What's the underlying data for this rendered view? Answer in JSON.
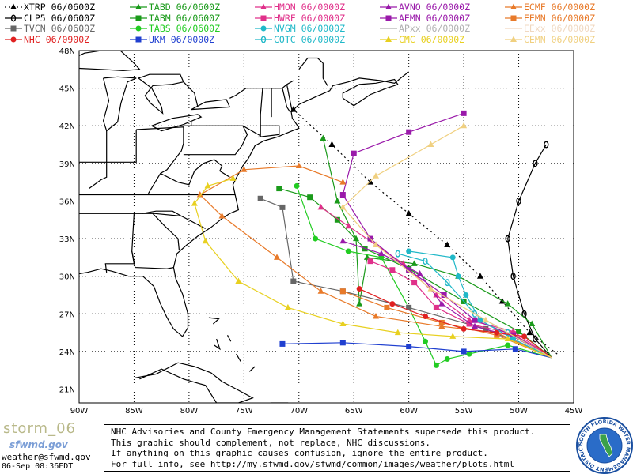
{
  "legend": [
    {
      "label": "XTRP 06/0600Z",
      "color": "#000000",
      "marker": "triangle",
      "line": "dotted"
    },
    {
      "label": "TABD 06/0600Z",
      "color": "#1a9a1a",
      "marker": "triangle",
      "line": "solid"
    },
    {
      "label": "HMON 06/0000Z",
      "color": "#e0308a",
      "marker": "triangle",
      "line": "solid"
    },
    {
      "label": "AVNO 06/0000Z",
      "color": "#9a1aaa",
      "marker": "triangle",
      "line": "solid"
    },
    {
      "label": "ECMF 06/0000Z",
      "color": "#e87a2a",
      "marker": "triangle",
      "line": "solid"
    },
    {
      "label": "CLP5 06/0600Z",
      "color": "#000000",
      "marker": "zero",
      "line": "solid"
    },
    {
      "label": "TABM 06/0600Z",
      "color": "#1a9a1a",
      "marker": "square",
      "line": "solid"
    },
    {
      "label": "HWRF 06/0000Z",
      "color": "#e0308a",
      "marker": "square",
      "line": "solid"
    },
    {
      "label": "AEMN 06/0000Z",
      "color": "#9a1aaa",
      "marker": "square",
      "line": "solid"
    },
    {
      "label": "EEMN 06/0000Z",
      "color": "#e87a2a",
      "marker": "square",
      "line": "solid"
    },
    {
      "label": "TVCN 06/0600Z",
      "color": "#666666",
      "marker": "square",
      "line": "solid"
    },
    {
      "label": "TABS 06/0600Z",
      "color": "#22cc22",
      "marker": "circle",
      "line": "solid"
    },
    {
      "label": "NVGM 06/0000Z",
      "color": "#20b8c8",
      "marker": "circle",
      "line": "solid"
    },
    {
      "label": "APxx  06/0000Z",
      "color": "#b0b0b0",
      "marker": "none",
      "line": "solid"
    },
    {
      "label": "EExx  06/0000Z",
      "color": "#f0d8c0",
      "marker": "none",
      "line": "solid"
    },
    {
      "label": "NHC 06/0900Z",
      "color": "#e02020",
      "marker": "circle",
      "line": "solid"
    },
    {
      "label": "UKM  06/0000Z",
      "color": "#2040d0",
      "marker": "square",
      "line": "solid"
    },
    {
      "label": "COTC 06/0000Z",
      "color": "#20b8c8",
      "marker": "zero",
      "line": "solid"
    },
    {
      "label": "CMC  06/0000Z",
      "color": "#e8d020",
      "marker": "triangle",
      "line": "solid"
    },
    {
      "label": "CEMN 06/0000Z",
      "color": "#f0d080",
      "marker": "triangle",
      "line": "solid"
    }
  ],
  "axes": {
    "lat_labels": [
      "48N",
      "45N",
      "42N",
      "39N",
      "36N",
      "33N",
      "30N",
      "27N",
      "24N",
      "21N"
    ],
    "lon_labels": [
      "90W",
      "85W",
      "80W",
      "75W",
      "70W",
      "65W",
      "60W",
      "55W",
      "50W",
      "45W"
    ]
  },
  "tracks": [
    {
      "name": "XTRP",
      "color": "#000000",
      "marker": "triangle",
      "dash": "2,4",
      "pts": [
        [
          -46.5,
          23.8
        ],
        [
          -49,
          25.5
        ],
        [
          -51.5,
          28
        ],
        [
          -53.5,
          30
        ],
        [
          -56.5,
          32.5
        ],
        [
          -60,
          35
        ],
        [
          -63.5,
          37.5
        ],
        [
          -67,
          40.5
        ],
        [
          -70.5,
          43.3
        ]
      ]
    },
    {
      "name": "CLP5",
      "color": "#000000",
      "marker": "zero",
      "dash": "",
      "pts": [
        [
          -47,
          23.5
        ],
        [
          -48.5,
          25
        ],
        [
          -49.5,
          27
        ],
        [
          -50.5,
          30
        ],
        [
          -51,
          33
        ],
        [
          -50,
          36
        ],
        [
          -48.5,
          39
        ],
        [
          -47.5,
          40.5
        ]
      ]
    },
    {
      "name": "TABD",
      "color": "#1a9a1a",
      "marker": "triangle",
      "dash": "",
      "pts": [
        [
          -47,
          23.5
        ],
        [
          -48.8,
          26.2
        ],
        [
          -51,
          27.8
        ],
        [
          -55.5,
          30
        ],
        [
          -59.5,
          31
        ],
        [
          -63.8,
          31.5
        ],
        [
          -64.5,
          27.8
        ],
        [
          -64.8,
          33
        ],
        [
          -66.5,
          36
        ],
        [
          -67.8,
          41
        ]
      ]
    },
    {
      "name": "TABM",
      "color": "#1a9a1a",
      "marker": "square",
      "dash": "",
      "pts": [
        [
          -47,
          23.5
        ],
        [
          -50,
          25.6
        ],
        [
          -55,
          28
        ],
        [
          -60,
          30.6
        ],
        [
          -64,
          32.2
        ],
        [
          -66.5,
          34.5
        ],
        [
          -69,
          36.3
        ],
        [
          -71.8,
          37
        ]
      ]
    },
    {
      "name": "TABS",
      "color": "#22cc22",
      "marker": "circle",
      "dash": "",
      "pts": [
        [
          -47,
          23.5
        ],
        [
          -51,
          24.5
        ],
        [
          -54.5,
          23.8
        ],
        [
          -56.5,
          23.4
        ],
        [
          -57.5,
          22.9
        ],
        [
          -58.5,
          24.8
        ],
        [
          -60,
          27.5
        ],
        [
          -62.5,
          31.5
        ],
        [
          -65.5,
          32
        ],
        [
          -68.5,
          33
        ],
        [
          -70.2,
          37.2
        ]
      ]
    },
    {
      "name": "TVCN",
      "color": "#666666",
      "marker": "square",
      "dash": "",
      "pts": [
        [
          -47,
          23.5
        ],
        [
          -53,
          25.8
        ],
        [
          -60,
          27.5
        ],
        [
          -66,
          28.8
        ],
        [
          -70.5,
          29.6
        ],
        [
          -71.5,
          35.5
        ],
        [
          -73.5,
          36.2
        ]
      ]
    },
    {
      "name": "HMON",
      "color": "#e0308a",
      "marker": "triangle",
      "dash": "",
      "pts": [
        [
          -47,
          23.5
        ],
        [
          -50.5,
          25.6
        ],
        [
          -54.5,
          26.5
        ],
        [
          -57.5,
          28.5
        ],
        [
          -60.5,
          31
        ],
        [
          -63,
          32.5
        ],
        [
          -65.5,
          34
        ],
        [
          -68,
          35.5
        ]
      ]
    },
    {
      "name": "HWRF",
      "color": "#e0308a",
      "marker": "square",
      "dash": "",
      "pts": [
        [
          -47,
          23.5
        ],
        [
          -50.5,
          25.4
        ],
        [
          -54.5,
          26.2
        ],
        [
          -57.5,
          27.5
        ],
        [
          -59.5,
          29.5
        ],
        [
          -61.5,
          30.5
        ],
        [
          -63.5,
          31.2
        ]
      ]
    },
    {
      "name": "AVNO",
      "color": "#9a1aaa",
      "marker": "triangle",
      "dash": "",
      "pts": [
        [
          -47,
          23.5
        ],
        [
          -50.5,
          25.2
        ],
        [
          -54,
          26
        ],
        [
          -57,
          27.8
        ],
        [
          -59,
          30.2
        ],
        [
          -62.5,
          31.8
        ],
        [
          -66,
          32.8
        ]
      ]
    },
    {
      "name": "AEMN",
      "color": "#9a1aaa",
      "marker": "square",
      "dash": "",
      "pts": [
        [
          -47,
          23.5
        ],
        [
          -50.5,
          25.3
        ],
        [
          -54,
          26.5
        ],
        [
          -56.8,
          28.5
        ],
        [
          -60,
          30.5
        ],
        [
          -63.5,
          33
        ],
        [
          -66,
          36.5
        ],
        [
          -65,
          39.8
        ],
        [
          -60,
          41.5
        ],
        [
          -55,
          43
        ]
      ]
    },
    {
      "name": "ECMF",
      "color": "#e87a2a",
      "marker": "triangle",
      "dash": "",
      "pts": [
        [
          -47,
          23.5
        ],
        [
          -52,
          25.5
        ],
        [
          -57,
          26
        ],
        [
          -63,
          26.8
        ],
        [
          -68,
          28.8
        ],
        [
          -72,
          31.5
        ],
        [
          -77,
          34.8
        ],
        [
          -79,
          36.5
        ],
        [
          -75,
          38.5
        ],
        [
          -70,
          38.8
        ],
        [
          -66,
          37.5
        ]
      ]
    },
    {
      "name": "EEMN",
      "color": "#e87a2a",
      "marker": "square",
      "dash": "",
      "pts": [
        [
          -47,
          23.5
        ],
        [
          -52,
          25.3
        ],
        [
          -57,
          26.3
        ],
        [
          -62,
          27.5
        ],
        [
          -66,
          28.8
        ]
      ]
    },
    {
      "name": "NVGM",
      "color": "#20b8c8",
      "marker": "circle",
      "dash": "",
      "pts": [
        [
          -47,
          23.5
        ],
        [
          -50.5,
          25
        ],
        [
          -53.5,
          26.5
        ],
        [
          -54.8,
          28.5
        ],
        [
          -55.5,
          30
        ],
        [
          -56,
          31.5
        ],
        [
          -60,
          32
        ]
      ]
    },
    {
      "name": "COTC",
      "color": "#20b8c8",
      "marker": "zero",
      "dash": "",
      "pts": [
        [
          -47,
          23.5
        ],
        [
          -51,
          25.5
        ],
        [
          -54,
          27
        ],
        [
          -56.5,
          29.5
        ],
        [
          -58.5,
          31.2
        ],
        [
          -61,
          31.8
        ]
      ]
    },
    {
      "name": "NHC",
      "color": "#e02020",
      "marker": "circle",
      "dash": "",
      "pts": [
        [
          -47,
          23.5
        ],
        [
          -49.5,
          25.2
        ],
        [
          -52,
          25.5
        ],
        [
          -55,
          25.8
        ],
        [
          -58.5,
          26.8
        ],
        [
          -61.5,
          27.8
        ],
        [
          -64.5,
          29
        ]
      ]
    },
    {
      "name": "UKM",
      "color": "#2040d0",
      "marker": "square",
      "dash": "",
      "pts": [
        [
          -47,
          23.5
        ],
        [
          -50.3,
          24.2
        ],
        [
          -55,
          24
        ],
        [
          -60,
          24.4
        ],
        [
          -66,
          24.7
        ],
        [
          -71.5,
          24.6
        ]
      ]
    },
    {
      "name": "CMC",
      "color": "#e8d020",
      "marker": "triangle",
      "dash": "",
      "pts": [
        [
          -47,
          23.5
        ],
        [
          -51,
          25
        ],
        [
          -56,
          25.2
        ],
        [
          -61,
          25.5
        ],
        [
          -66,
          26.2
        ],
        [
          -71,
          27.5
        ],
        [
          -75.5,
          29.6
        ],
        [
          -78.5,
          32.8
        ],
        [
          -79.5,
          35.8
        ],
        [
          -78.3,
          37.2
        ],
        [
          -76,
          37.8
        ]
      ]
    },
    {
      "name": "CEMN",
      "color": "#f0d080",
      "marker": "triangle",
      "dash": "",
      "pts": [
        [
          -47,
          23.5
        ],
        [
          -53,
          26.5
        ],
        [
          -58,
          29
        ],
        [
          -63,
          32.5
        ],
        [
          -66,
          35.5
        ],
        [
          -63,
          38
        ],
        [
          -58,
          40.5
        ],
        [
          -55,
          42
        ]
      ]
    }
  ],
  "footer": {
    "storm_name": "storm_06",
    "site_logo": "sfwmd.gov",
    "email": "weather@sfwmd.gov",
    "timestamp": "06-Sep 08:36EDT",
    "disclaimer_lines": [
      "NHC Advisories and County Emergency Management Statements supersede this product.",
      "This graphic should complement, not replace, NHC discussions.",
      "If anything on this graphic causes confusion, ignore the entire product.",
      "For full info, see  http://my.sfwmd.gov/sfwmd/common/images/weather/plots.html"
    ],
    "seal_text": "SOUTH FLORIDA WATER MANAGEMENT DISTRICT"
  }
}
